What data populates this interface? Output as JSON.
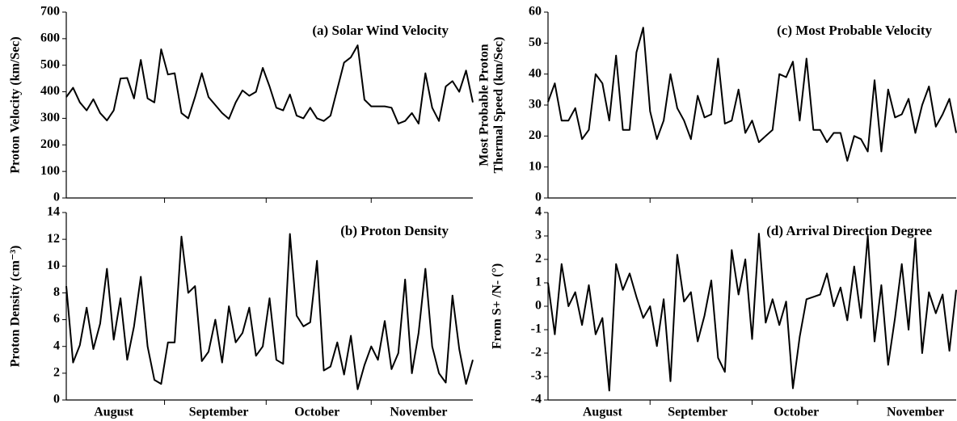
{
  "chart_data": [
    {
      "type": "line",
      "title": "(a) Solar Wind Velocity",
      "ylabel": [
        "Proton Velocity (km/Sec)"
      ],
      "color": "#000000",
      "x": [
        0,
        2,
        4,
        6,
        8,
        10,
        12,
        14,
        16,
        18,
        20,
        22,
        24,
        26,
        28,
        30,
        32,
        34,
        36,
        38,
        40,
        42,
        44,
        46,
        48,
        50,
        52,
        54,
        56,
        58,
        60,
        62,
        64,
        66,
        68,
        70,
        72,
        74,
        76,
        78,
        80,
        82,
        84,
        86,
        88,
        90,
        92,
        94,
        96,
        98,
        100,
        102,
        104,
        106,
        108,
        110,
        112,
        114,
        116,
        118,
        120
      ],
      "values": [
        380,
        415,
        360,
        330,
        372,
        320,
        292,
        330,
        450,
        452,
        375,
        520,
        375,
        360,
        560,
        465,
        470,
        320,
        300,
        380,
        470,
        380,
        350,
        320,
        298,
        360,
        405,
        385,
        400,
        490,
        420,
        340,
        330,
        390,
        310,
        300,
        340,
        300,
        290,
        310,
        410,
        510,
        530,
        575,
        370,
        345,
        345,
        345,
        340,
        280,
        290,
        320,
        280,
        470,
        340,
        290,
        420,
        440,
        400,
        480,
        360
      ],
      "xlim": [
        0,
        120
      ],
      "xminorticks": [
        29,
        59,
        90
      ],
      "ylim": [
        0,
        700
      ],
      "yticks": [
        0,
        100,
        200,
        300,
        400,
        500,
        600,
        700
      ]
    },
    {
      "type": "line",
      "title": "(b) Proton Density",
      "ylabel": [
        "Proton Density (cm⁻³)"
      ],
      "color": "#000000",
      "x": [
        0,
        2,
        4,
        6,
        8,
        10,
        12,
        14,
        16,
        18,
        20,
        22,
        24,
        26,
        28,
        30,
        32,
        34,
        36,
        38,
        40,
        42,
        44,
        46,
        48,
        50,
        52,
        54,
        56,
        58,
        60,
        62,
        64,
        66,
        68,
        70,
        72,
        74,
        76,
        78,
        80,
        82,
        84,
        86,
        88,
        90,
        92,
        94,
        96,
        98,
        100,
        102,
        104,
        106,
        108,
        110,
        112,
        114,
        116,
        118,
        120
      ],
      "values": [
        8.5,
        2.8,
        4.1,
        6.9,
        3.8,
        5.7,
        9.8,
        4.5,
        7.6,
        3.0,
        5.5,
        9.2,
        4.0,
        1.5,
        1.2,
        4.3,
        4.3,
        12.2,
        8.0,
        8.5,
        2.9,
        3.6,
        6.0,
        2.8,
        7.0,
        4.3,
        5.0,
        6.9,
        3.3,
        4.0,
        7.6,
        3.0,
        2.7,
        12.4,
        6.3,
        5.5,
        5.8,
        10.4,
        2.2,
        2.5,
        4.3,
        1.9,
        4.8,
        0.8,
        2.6,
        4.0,
        3.0,
        5.9,
        2.3,
        3.5,
        9.0,
        2.0,
        5.0,
        9.8,
        4.0,
        2.0,
        1.3,
        7.8,
        3.8,
        1.2,
        3.0
      ],
      "xlim": [
        0,
        120
      ],
      "xminorticks": [
        29,
        59,
        90
      ],
      "xticks": [
        {
          "value": 14,
          "label": "August"
        },
        {
          "value": 45,
          "label": "September"
        },
        {
          "value": 74,
          "label": "October"
        },
        {
          "value": 104,
          "label": "November"
        }
      ],
      "ylim": [
        0,
        14
      ],
      "yticks": [
        0,
        2,
        4,
        6,
        8,
        10,
        12,
        14
      ]
    },
    {
      "type": "line",
      "title": "(c) Most Probable Velocity",
      "ylabel": [
        "Most Probable Proton",
        "Thermal Speed (km/Sec)"
      ],
      "color": "#000000",
      "x": [
        0,
        2,
        4,
        6,
        8,
        10,
        12,
        14,
        16,
        18,
        20,
        22,
        24,
        26,
        28,
        30,
        32,
        34,
        36,
        38,
        40,
        42,
        44,
        46,
        48,
        50,
        52,
        54,
        56,
        58,
        60,
        62,
        64,
        66,
        68,
        70,
        72,
        74,
        76,
        78,
        80,
        82,
        84,
        86,
        88,
        90,
        92,
        94,
        96,
        98,
        100,
        102,
        104,
        106,
        108,
        110,
        112,
        114,
        116,
        118,
        120
      ],
      "values": [
        31,
        37,
        25,
        25,
        29,
        19,
        22,
        40,
        37,
        25,
        46,
        22,
        22,
        47,
        55,
        28,
        19,
        25,
        40,
        29,
        25,
        19,
        33,
        26,
        27,
        45,
        24,
        25,
        35,
        21,
        25,
        18,
        20,
        22,
        40,
        39,
        44,
        25,
        45,
        22,
        22,
        18,
        21,
        21,
        12,
        20,
        19,
        15,
        38,
        15,
        35,
        26,
        27,
        32,
        21,
        30,
        36,
        23,
        27,
        32,
        21
      ],
      "xlim": [
        0,
        120
      ],
      "xminorticks": [
        30,
        60,
        91
      ],
      "ylim": [
        0,
        60
      ],
      "yticks": [
        0,
        10,
        20,
        30,
        40,
        50,
        60
      ]
    },
    {
      "type": "line",
      "title": "(d) Arrival Direction Degree",
      "ylabel": [
        "From S+ /N- (°)"
      ],
      "color": "#000000",
      "x": [
        0,
        2,
        4,
        6,
        8,
        10,
        12,
        14,
        16,
        18,
        20,
        22,
        24,
        26,
        28,
        30,
        32,
        34,
        36,
        38,
        40,
        42,
        44,
        46,
        48,
        50,
        52,
        54,
        56,
        58,
        60,
        62,
        64,
        66,
        68,
        70,
        72,
        74,
        76,
        78,
        80,
        82,
        84,
        86,
        88,
        90,
        92,
        94,
        96,
        98,
        100,
        102,
        104,
        106,
        108,
        110,
        112,
        114,
        116,
        118,
        120
      ],
      "values": [
        1.0,
        -1.2,
        1.8,
        0.0,
        0.6,
        -0.8,
        0.9,
        -1.2,
        -0.5,
        -3.6,
        1.8,
        0.7,
        1.4,
        0.4,
        -0.5,
        0.0,
        -1.7,
        0.3,
        -3.2,
        2.2,
        0.2,
        0.6,
        -1.5,
        -0.4,
        1.1,
        -2.2,
        -2.8,
        2.4,
        0.5,
        2.0,
        -1.4,
        3.1,
        -0.7,
        0.3,
        -0.8,
        0.2,
        -3.5,
        -1.3,
        0.3,
        0.4,
        0.5,
        1.4,
        0.0,
        0.8,
        -0.6,
        1.7,
        -0.5,
        3.0,
        -1.5,
        0.9,
        -2.5,
        -0.5,
        1.8,
        -1.0,
        2.9,
        -2.0,
        0.6,
        -0.3,
        0.5,
        -1.9,
        0.7
      ],
      "xlim": [
        0,
        120
      ],
      "xminorticks": [
        30,
        60,
        91
      ],
      "xticks": [
        {
          "value": 16,
          "label": "August"
        },
        {
          "value": 44,
          "label": "September"
        },
        {
          "value": 73,
          "label": "October"
        },
        {
          "value": 108,
          "label": "November"
        }
      ],
      "ylim": [
        -4,
        4
      ],
      "yticks": [
        -4,
        -3,
        -2,
        -1,
        0,
        1,
        2,
        3,
        4
      ]
    }
  ]
}
